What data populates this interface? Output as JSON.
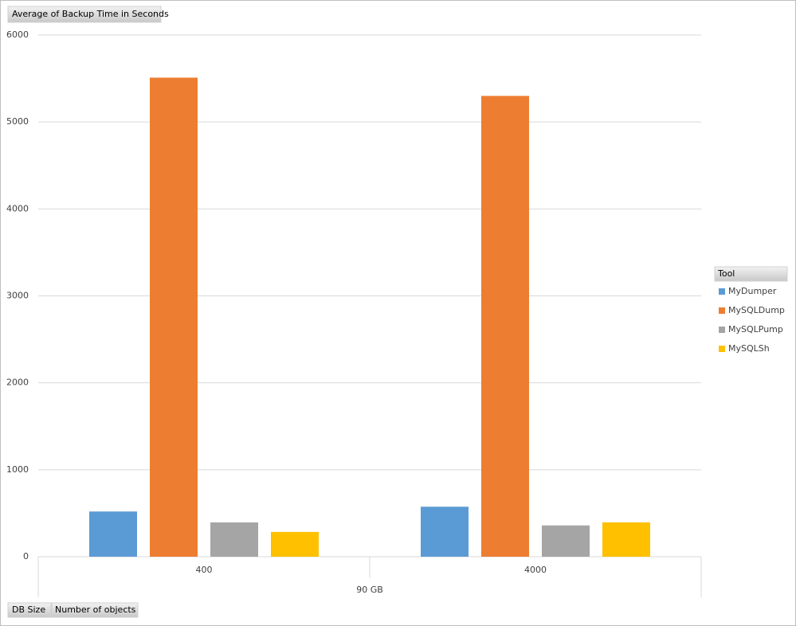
{
  "chart_data": {
    "type": "bar",
    "value_field": "Average of Backup Time in Seconds",
    "category_fields": [
      "DB Size",
      "Number of objects"
    ],
    "outer_categories": [
      "90 GB"
    ],
    "categories": [
      "400",
      "4000"
    ],
    "legend_title": "Tool",
    "legend_position": "right",
    "series": [
      {
        "name": "MyDumper",
        "color": "#5b9bd5",
        "values": [
          520,
          575
        ]
      },
      {
        "name": "MySQLDump",
        "color": "#ed7d31",
        "values": [
          5510,
          5300
        ]
      },
      {
        "name": "MySQLPump",
        "color": "#a5a5a5",
        "values": [
          395,
          360
        ]
      },
      {
        "name": "MySQLSh",
        "color": "#ffc000",
        "values": [
          285,
          395
        ]
      }
    ],
    "ylim": [
      0,
      6000
    ],
    "yticks": [
      0,
      1000,
      2000,
      3000,
      4000,
      5000,
      6000
    ],
    "grid": true
  }
}
